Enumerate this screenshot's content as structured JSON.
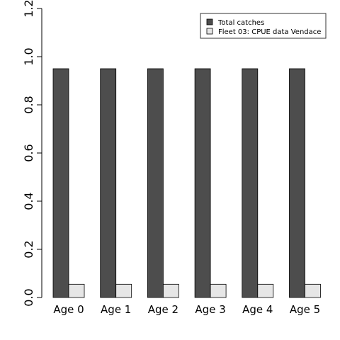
{
  "chart_data": {
    "type": "bar",
    "categories": [
      "Age 0",
      "Age 1",
      "Age 2",
      "Age 3",
      "Age 4",
      "Age 5"
    ],
    "series": [
      {
        "name": "Total catches",
        "values": [
          0.95,
          0.95,
          0.95,
          0.95,
          0.95,
          0.95
        ],
        "color": "#4d4d4d"
      },
      {
        "name": "Fleet 03:  CPUE data Vendace",
        "values": [
          0.055,
          0.055,
          0.055,
          0.055,
          0.055,
          0.055
        ],
        "color": "#e6e6e6"
      }
    ],
    "yticks": [
      "0.0",
      "0.2",
      "0.4",
      "0.6",
      "0.8",
      "1.0",
      "1.2"
    ],
    "ylim": [
      0,
      1.2
    ],
    "legend_position": "top-right",
    "grid": false
  }
}
